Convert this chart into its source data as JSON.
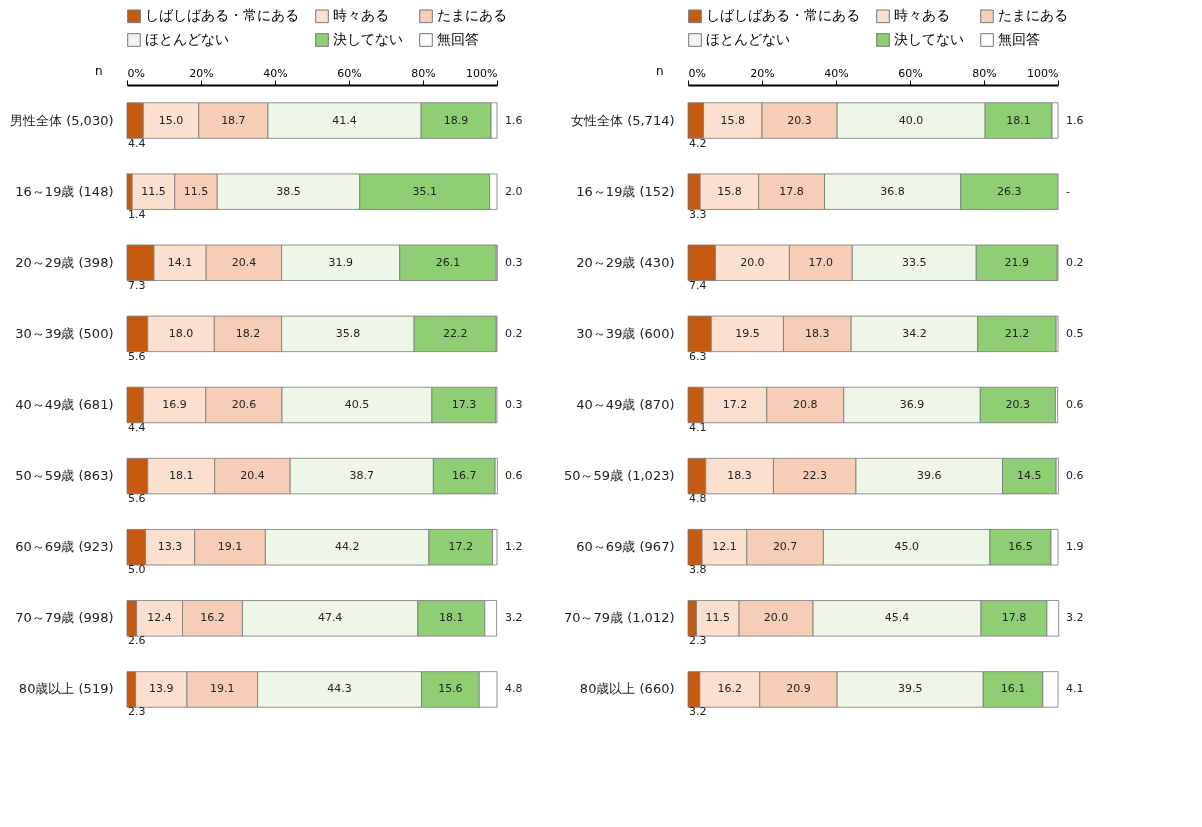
{
  "chart_data": [
    {
      "type": "bar",
      "orientation": "horizontal",
      "stacked": true,
      "legend": "top",
      "grid": false,
      "annotations": [
        "n"
      ],
      "categories": [
        "男性全体 (5,030)",
        "16～19歳 (148)",
        "20～29歳 (398)",
        "30～39歳 (500)",
        "40～49歳 (681)",
        "50～59歳 (863)",
        "60～69歳 (923)",
        "70～79歳 (998)",
        "80歳以上 (519)"
      ],
      "xlim": [
        0,
        100
      ],
      "xticks": [
        {
          "value": 0,
          "label": "0%"
        },
        {
          "value": 20,
          "label": "20%"
        },
        {
          "value": 40,
          "label": "40%"
        },
        {
          "value": 60,
          "label": "60%"
        },
        {
          "value": 80,
          "label": "80%"
        },
        {
          "value": 100,
          "label": "100%"
        }
      ],
      "series": [
        {
          "name": "しばしばある・常にある",
          "color": "#c55a11",
          "values": [
            4.4,
            1.4,
            7.3,
            5.6,
            4.4,
            5.6,
            5.0,
            2.6,
            2.3
          ],
          "value_labels": [
            "4.4",
            "1.4",
            "7.3",
            "5.6",
            "4.4",
            "5.6",
            "5.0",
            "2.6",
            "2.3"
          ]
        },
        {
          "name": "時々ある",
          "color": "#fbe0d0",
          "values": [
            15.0,
            11.5,
            14.1,
            18.0,
            16.9,
            18.1,
            13.3,
            12.4,
            13.9
          ],
          "value_labels": [
            "15.0",
            "11.5",
            "14.1",
            "18.0",
            "16.9",
            "18.1",
            "13.3",
            "12.4",
            "13.9"
          ]
        },
        {
          "name": "たまにある",
          "color": "#f6cdb6",
          "values": [
            18.7,
            11.5,
            20.4,
            18.2,
            20.6,
            20.4,
            19.1,
            16.2,
            19.1
          ],
          "value_labels": [
            "18.7",
            "11.5",
            "20.4",
            "18.2",
            "20.6",
            "20.4",
            "19.1",
            "16.2",
            "19.1"
          ]
        },
        {
          "name": "ほとんどない",
          "color": "#eef6e8",
          "values": [
            41.4,
            38.5,
            31.9,
            35.8,
            40.5,
            38.7,
            44.2,
            47.4,
            44.3
          ],
          "value_labels": [
            "41.4",
            "38.5",
            "31.9",
            "35.8",
            "40.5",
            "38.7",
            "44.2",
            "47.4",
            "44.3"
          ]
        },
        {
          "name": "決してない",
          "color": "#8fce74",
          "values": [
            18.9,
            35.1,
            26.1,
            22.2,
            17.3,
            16.7,
            17.2,
            18.1,
            15.6
          ],
          "value_labels": [
            "18.9",
            "35.1",
            "26.1",
            "22.2",
            "17.3",
            "16.7",
            "17.2",
            "18.1",
            "15.6"
          ]
        },
        {
          "name": "無回答",
          "color": "#ffffff",
          "values": [
            1.6,
            2.0,
            0.3,
            0.2,
            0.3,
            0.6,
            1.2,
            3.2,
            4.8
          ],
          "value_labels": [
            "1.6",
            "2.0",
            "0.3",
            "0.2",
            "0.3",
            "0.6",
            "1.2",
            "3.2",
            "4.8"
          ]
        }
      ]
    },
    {
      "type": "bar",
      "orientation": "horizontal",
      "stacked": true,
      "legend": "top",
      "grid": false,
      "annotations": [
        "n"
      ],
      "categories": [
        "女性全体 (5,714)",
        "16～19歳 (152)",
        "20～29歳 (430)",
        "30～39歳 (600)",
        "40～49歳 (870)",
        "50～59歳 (1,023)",
        "60～69歳 (967)",
        "70～79歳 (1,012)",
        "80歳以上 (660)"
      ],
      "xlim": [
        0,
        100
      ],
      "xticks": [
        {
          "value": 0,
          "label": "0%"
        },
        {
          "value": 20,
          "label": "20%"
        },
        {
          "value": 40,
          "label": "40%"
        },
        {
          "value": 60,
          "label": "60%"
        },
        {
          "value": 80,
          "label": "80%"
        },
        {
          "value": 100,
          "label": "100%"
        }
      ],
      "series": [
        {
          "name": "しばしばある・常にある",
          "color": "#c55a11",
          "values": [
            4.2,
            3.3,
            7.4,
            6.3,
            4.1,
            4.8,
            3.8,
            2.3,
            3.2
          ],
          "value_labels": [
            "4.2",
            "3.3",
            "7.4",
            "6.3",
            "4.1",
            "4.8",
            "3.8",
            "2.3",
            "3.2"
          ]
        },
        {
          "name": "時々ある",
          "color": "#fbe0d0",
          "values": [
            15.8,
            15.8,
            20.0,
            19.5,
            17.2,
            18.3,
            12.1,
            11.5,
            16.2
          ],
          "value_labels": [
            "15.8",
            "15.8",
            "20.0",
            "19.5",
            "17.2",
            "18.3",
            "12.1",
            "11.5",
            "16.2"
          ]
        },
        {
          "name": "たまにある",
          "color": "#f6cdb6",
          "values": [
            20.3,
            17.8,
            17.0,
            18.3,
            20.8,
            22.3,
            20.7,
            20.0,
            20.9
          ],
          "value_labels": [
            "20.3",
            "17.8",
            "17.0",
            "18.3",
            "20.8",
            "22.3",
            "20.7",
            "20.0",
            "20.9"
          ]
        },
        {
          "name": "ほとんどない",
          "color": "#eef6e8",
          "values": [
            40.0,
            36.8,
            33.5,
            34.2,
            36.9,
            39.6,
            45.0,
            45.4,
            39.5
          ],
          "value_labels": [
            "40.0",
            "36.8",
            "33.5",
            "34.2",
            "36.9",
            "39.6",
            "45.0",
            "45.4",
            "39.5"
          ]
        },
        {
          "name": "決してない",
          "color": "#8fce74",
          "values": [
            18.1,
            26.3,
            21.9,
            21.2,
            20.3,
            14.5,
            16.5,
            17.8,
            16.1
          ],
          "value_labels": [
            "18.1",
            "26.3",
            "21.9",
            "21.2",
            "20.3",
            "14.5",
            "16.5",
            "17.8",
            "16.1"
          ]
        },
        {
          "name": "無回答",
          "color": "#ffffff",
          "values": [
            1.6,
            0,
            0.2,
            0.5,
            0.6,
            0.6,
            1.9,
            3.2,
            4.1
          ],
          "value_labels": [
            "1.6",
            "-",
            "0.2",
            "0.5",
            "0.6",
            "0.6",
            "1.9",
            "3.2",
            "4.1"
          ]
        }
      ]
    }
  ]
}
